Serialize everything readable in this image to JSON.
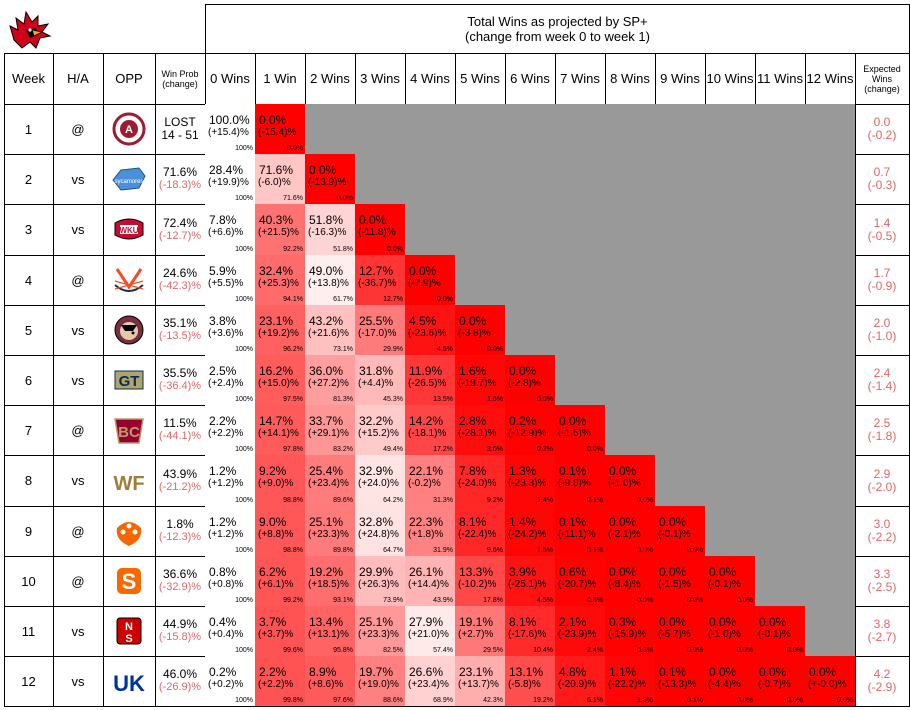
{
  "title_line1": "Total Wins as projected by SP+",
  "title_line2": "(change from week 0 to week 1)",
  "headers": {
    "week": "Week",
    "ha": "H/A",
    "opp": "OPP",
    "winprob": "Win Prob (change)",
    "wins": [
      "0 Wins",
      "1 Win",
      "2 Wins",
      "3 Wins",
      "4 Wins",
      "5 Wins",
      "6 Wins",
      "7 Wins",
      "8 Wins",
      "9 Wins",
      "10 Wins",
      "11 Wins",
      "12 Wins"
    ],
    "expected": "Expected Wins (change)"
  },
  "colors": {
    "red": "#ff0000",
    "grey": "#999999",
    "change_text": "#e06666"
  },
  "chart_data": {
    "type": "table",
    "rows": [
      {
        "week": "1",
        "ha": "@",
        "opp_icon": "alabama-logo-icon",
        "winprob": "LOST",
        "winprob_change": "14 - 51",
        "cells": [
          [
            "100.0%",
            "(+15.4)%",
            "100%"
          ],
          [
            "0.0%",
            "(-15.4)%",
            "0.0%"
          ]
        ],
        "exp": "0.0",
        "exp_change": "(-0.2)"
      },
      {
        "week": "2",
        "ha": "vs",
        "opp_icon": "indiana-state-logo-icon",
        "winprob": "71.6%",
        "winprob_change": "(-18.3)%",
        "cells": [
          [
            "28.4%",
            "(+19.9)%",
            "100%"
          ],
          [
            "71.6%",
            "(-6.0)%",
            "71.6%"
          ],
          [
            "0.0%",
            "(-13.9)%",
            "0.0%"
          ]
        ],
        "exp": "0.7",
        "exp_change": "(-0.3)"
      },
      {
        "week": "3",
        "ha": "vs",
        "opp_icon": "wku-logo-icon",
        "winprob": "72.4%",
        "winprob_change": "(-12.7)%",
        "cells": [
          [
            "7.8%",
            "(+6.6)%",
            "100%"
          ],
          [
            "40.3%",
            "(+21.5)%",
            "92.2%"
          ],
          [
            "51.8%",
            "(-16.3)%",
            "51.8%"
          ],
          [
            "0.0%",
            "(-11.8)%",
            "0.0%"
          ]
        ],
        "exp": "1.4",
        "exp_change": "(-0.5)"
      },
      {
        "week": "4",
        "ha": "@",
        "opp_icon": "virginia-logo-icon",
        "winprob": "24.6%",
        "winprob_change": "(-42.3)%",
        "cells": [
          [
            "5.9%",
            "(+5.5)%",
            "100%"
          ],
          [
            "32.4%",
            "(+25.3)%",
            "94.1%"
          ],
          [
            "49.0%",
            "(+13.8)%",
            "61.7%"
          ],
          [
            "12.7%",
            "(-36.7)%",
            "12.7%"
          ],
          [
            "0.0%",
            "(-7.9)%",
            "0.0%"
          ]
        ],
        "exp": "1.7",
        "exp_change": "(-0.9)"
      },
      {
        "week": "5",
        "ha": "vs",
        "opp_icon": "florida-state-logo-icon",
        "winprob": "35.1%",
        "winprob_change": "(-13.5)%",
        "cells": [
          [
            "3.8%",
            "(+3.6)%",
            "100%"
          ],
          [
            "23.1%",
            "(+19.2)%",
            "96.2%"
          ],
          [
            "43.2%",
            "(+21.6)%",
            "73.1%"
          ],
          [
            "25.5%",
            "(-17.0)%",
            "29.9%"
          ],
          [
            "4.5%",
            "(-23.6)%",
            "4.5%"
          ],
          [
            "0.0%",
            "(-3.8)%",
            "0.0%"
          ]
        ],
        "exp": "2.0",
        "exp_change": "(-1.0)"
      },
      {
        "week": "6",
        "ha": "vs",
        "opp_icon": "georgia-tech-logo-icon",
        "winprob": "35.5%",
        "winprob_change": "(-36.4)%",
        "cells": [
          [
            "2.5%",
            "(+2.4)%",
            "100%"
          ],
          [
            "16.2%",
            "(+15.0)%",
            "97.5%"
          ],
          [
            "36.0%",
            "(+27.2)%",
            "81.3%"
          ],
          [
            "31.8%",
            "(+4.4)%",
            "45.3%"
          ],
          [
            "11.9%",
            "(-26.5)%",
            "13.5%"
          ],
          [
            "1.6%",
            "(-19.7)%",
            "1.6%"
          ],
          [
            "0.0%",
            "(-2.8)%",
            "0.0%"
          ]
        ],
        "exp": "2.4",
        "exp_change": "(-1.4)"
      },
      {
        "week": "7",
        "ha": "@",
        "opp_icon": "boston-college-logo-icon",
        "winprob": "11.5%",
        "winprob_change": "(-44.1)%",
        "cells": [
          [
            "2.2%",
            "(+2.2)%",
            "100%"
          ],
          [
            "14.7%",
            "(+14.1)%",
            "97.8%"
          ],
          [
            "33.7%",
            "(+29.1)%",
            "83.2%"
          ],
          [
            "32.2%",
            "(+15.2)%",
            "49.4%"
          ],
          [
            "14.2%",
            "(-18.1)%",
            "17.2%"
          ],
          [
            "2.8%",
            "(-28.1)%",
            "3.0%"
          ],
          [
            "0.2%",
            "(-12.9)%",
            "0.2%"
          ],
          [
            "0.0%",
            "(-1.5)%",
            "0.0%"
          ]
        ],
        "exp": "2.5",
        "exp_change": "(-1.8)"
      },
      {
        "week": "8",
        "ha": "vs",
        "opp_icon": "wake-forest-logo-icon",
        "winprob": "43.9%",
        "winprob_change": "(-21.2)%",
        "cells": [
          [
            "1.2%",
            "(+1.2)%",
            "100%"
          ],
          [
            "9.2%",
            "(+9.0)%",
            "98.8%"
          ],
          [
            "25.4%",
            "(+23.4)%",
            "89.6%"
          ],
          [
            "32.9%",
            "(+24.0)%",
            "64.2%"
          ],
          [
            "22.1%",
            "(-0.2)%",
            "31.3%"
          ],
          [
            "7.8%",
            "(-24.0)%",
            "9.2%"
          ],
          [
            "1.3%",
            "(-23.3)%",
            "1.4%"
          ],
          [
            "0.1%",
            "(-9.0)%",
            "0.1%"
          ],
          [
            "0.0%",
            "(-1.0)%",
            "0.0%"
          ]
        ],
        "exp": "2.9",
        "exp_change": "(-2.0)"
      },
      {
        "week": "9",
        "ha": "@",
        "opp_icon": "clemson-logo-icon",
        "winprob": "1.8%",
        "winprob_change": "(-12.3)%",
        "cells": [
          [
            "1.2%",
            "(+1.2)%",
            "100%"
          ],
          [
            "9.0%",
            "(+8.8)%",
            "98.8%"
          ],
          [
            "25.1%",
            "(+23.3)%",
            "89.8%"
          ],
          [
            "32.8%",
            "(+24.8)%",
            "64.7%"
          ],
          [
            "22.3%",
            "(+1.8)%",
            "31.9%"
          ],
          [
            "8.1%",
            "(-22.4)%",
            "9.6%"
          ],
          [
            "1.4%",
            "(-24.2)%",
            "1.5%"
          ],
          [
            "0.1%",
            "(-11.1)%",
            "0.1%"
          ],
          [
            "0.0%",
            "(-2.1)%",
            "0.0%"
          ],
          [
            "0.0%",
            "(-0.1)%",
            "0.0%"
          ]
        ],
        "exp": "3.0",
        "exp_change": "(-2.2)"
      },
      {
        "week": "10",
        "ha": "@",
        "opp_icon": "syracuse-logo-icon",
        "winprob": "36.6%",
        "winprob_change": "(-32.9)%",
        "cells": [
          [
            "0.8%",
            "(+0.8)%",
            "100%"
          ],
          [
            "6.2%",
            "(+6.1)%",
            "99.2%"
          ],
          [
            "19.2%",
            "(+18.5)%",
            "93.1%"
          ],
          [
            "29.9%",
            "(+26.3)%",
            "73.9%"
          ],
          [
            "26.1%",
            "(+14.4)%",
            "43.9%"
          ],
          [
            "13.3%",
            "(-10.2)%",
            "17.8%"
          ],
          [
            "3.9%",
            "(-25.1)%",
            "4.5%"
          ],
          [
            "0.6%",
            "(-20.7)%",
            "0.6%"
          ],
          [
            "0.0%",
            "(-8.4)%",
            "0.0%"
          ],
          [
            "0.0%",
            "(-1.5)%",
            "0.0%"
          ],
          [
            "0.0%",
            "(-0.1)%",
            "0.0%"
          ]
        ],
        "exp": "3.3",
        "exp_change": "(-2.5)"
      },
      {
        "week": "11",
        "ha": "vs",
        "opp_icon": "nc-state-logo-icon",
        "winprob": "44.9%",
        "winprob_change": "(-15.8)%",
        "cells": [
          [
            "0.4%",
            "(+0.4)%",
            "100%"
          ],
          [
            "3.7%",
            "(+3.7)%",
            "99.6%"
          ],
          [
            "13.4%",
            "(+13.1)%",
            "95.8%"
          ],
          [
            "25.1%",
            "(+23.3)%",
            "82.5%"
          ],
          [
            "27.9%",
            "(+21.0)%",
            "57.4%"
          ],
          [
            "19.1%",
            "(+2.7)%",
            "29.5%"
          ],
          [
            "8.1%",
            "(-17.6)%",
            "10.4%"
          ],
          [
            "2.1%",
            "(-23.9)%",
            "2.4%"
          ],
          [
            "0.3%",
            "(-15.9)%",
            "0.3%"
          ],
          [
            "0.0%",
            "(-5.7)%",
            "0.0%"
          ],
          [
            "0.0%",
            "(-1.0)%",
            "0.0%"
          ],
          [
            "0.0%",
            "(-0.1)%",
            "0.0%"
          ]
        ],
        "exp": "3.8",
        "exp_change": "(-2.7)"
      },
      {
        "week": "12",
        "ha": "vs",
        "opp_icon": "kentucky-logo-icon",
        "winprob": "46.0%",
        "winprob_change": "(-26.9)%",
        "cells": [
          [
            "0.2%",
            "(+0.2)%",
            "100%"
          ],
          [
            "2.2%",
            "(+2.2)%",
            "99.8%"
          ],
          [
            "8.9%",
            "(+8.6)%",
            "97.6%"
          ],
          [
            "19.7%",
            "(+19.0)%",
            "88.6%"
          ],
          [
            "26.6%",
            "(+23.4)%",
            "68.9%"
          ],
          [
            "23.1%",
            "(+13.7)%",
            "42.3%"
          ],
          [
            "13.1%",
            "(-5.8)%",
            "19.2%"
          ],
          [
            "4.8%",
            "(-20.9)%",
            "6.1%"
          ],
          [
            "1.1%",
            "(-22.2)%",
            "1.3%"
          ],
          [
            "0.1%",
            "(-13.3)%",
            "0.1%"
          ],
          [
            "0.0%",
            "(-4.4)%",
            "0.0%"
          ],
          [
            "0.0%",
            "(-0.7)%",
            "0.0%"
          ],
          [
            "0.0%",
            "(+-0.0)%",
            "0.0%"
          ]
        ],
        "exp": "4.2",
        "exp_change": "(-2.9)"
      }
    ]
  }
}
